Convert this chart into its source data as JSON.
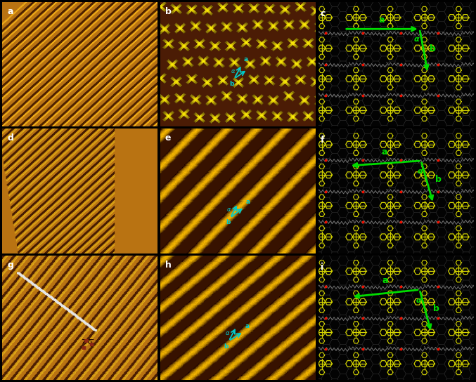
{
  "figsize": [
    6.77,
    5.44
  ],
  "dpi": 100,
  "panel_labels": [
    "a",
    "b",
    "c",
    "d",
    "e",
    "f",
    "g",
    "h",
    "i"
  ],
  "colors": {
    "stm_orange_bg": [
      192,
      120,
      20
    ],
    "stm_orange_bright": [
      230,
      160,
      40
    ],
    "stm_dark_stripe": [
      90,
      40,
      0
    ],
    "stm_yellow_bright": [
      255,
      210,
      30
    ],
    "stm_dark_bg": [
      70,
      20,
      0
    ],
    "mol_bg": "#050505",
    "hex_grid": "#2a2a2a",
    "mol_yellow": "#d4d400",
    "chain_gray": "#888888",
    "red_atom": "#ff2200",
    "vec_green": "#00dd00",
    "vec_cyan": "#00cccc"
  }
}
